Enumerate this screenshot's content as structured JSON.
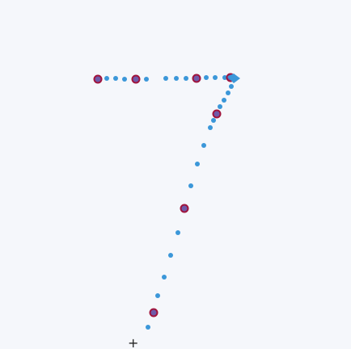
{
  "canvas": {
    "background": "#f5f7fb"
  },
  "trace": {
    "stroke_color": "#3b97d9",
    "anchor_color": "#a0143c",
    "anchor_fill": "#6f5aa9",
    "cursor_icon": "crosshair-icon"
  }
}
